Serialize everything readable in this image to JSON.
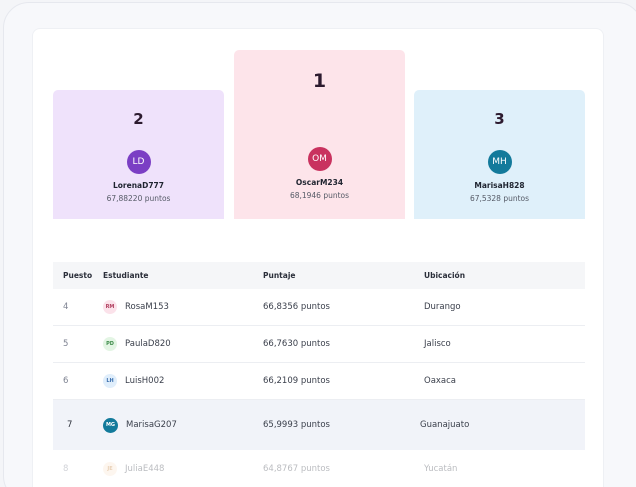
{
  "podium": [
    {
      "place": "2",
      "initials": "LD",
      "name": "LorenaD777",
      "points": "67,88220 puntos",
      "avatar_color": "#7b3fc4"
    },
    {
      "place": "1",
      "initials": "OM",
      "name": "OscarM234",
      "points": "68,1946 puntos",
      "avatar_color": "#c9325f"
    },
    {
      "place": "3",
      "initials": "MH",
      "name": "MarisaH828",
      "points": "67,5328 puntos",
      "avatar_color": "#137a9b"
    }
  ],
  "table": {
    "headers": {
      "rank": "Puesto",
      "student": "Estudiante",
      "score": "Puntaje",
      "location": "Ubicación"
    },
    "rows": [
      {
        "rank": "4",
        "initials": "RM",
        "name": "RosaM153",
        "score": "66,8356 puntos",
        "location": "Durango",
        "avatar_bg": "#fbe2ea",
        "avatar_fg": "#b0405f"
      },
      {
        "rank": "5",
        "initials": "PD",
        "name": "PaulaD820",
        "score": "66,7630 puntos",
        "location": "Jalisco",
        "avatar_bg": "#e3f5e4",
        "avatar_fg": "#3c8a48"
      },
      {
        "rank": "6",
        "initials": "LH",
        "name": "LuisH002",
        "score": "66,2109 puntos",
        "location": "Oaxaca",
        "avatar_bg": "#e0eefb",
        "avatar_fg": "#3a6fae"
      },
      {
        "rank": "7",
        "initials": "MG",
        "name": "MarisaG207",
        "score": "65,9993 puntos",
        "location": "Guanajuato",
        "avatar_bg": "#137a9b",
        "avatar_fg": "#ffffff"
      },
      {
        "rank": "8",
        "initials": "JE",
        "name": "JuliaE448",
        "score": "64,8767 puntos",
        "location": "Yucatán",
        "avatar_bg": "#fbe8d2",
        "avatar_fg": "#c07a30"
      }
    ]
  }
}
